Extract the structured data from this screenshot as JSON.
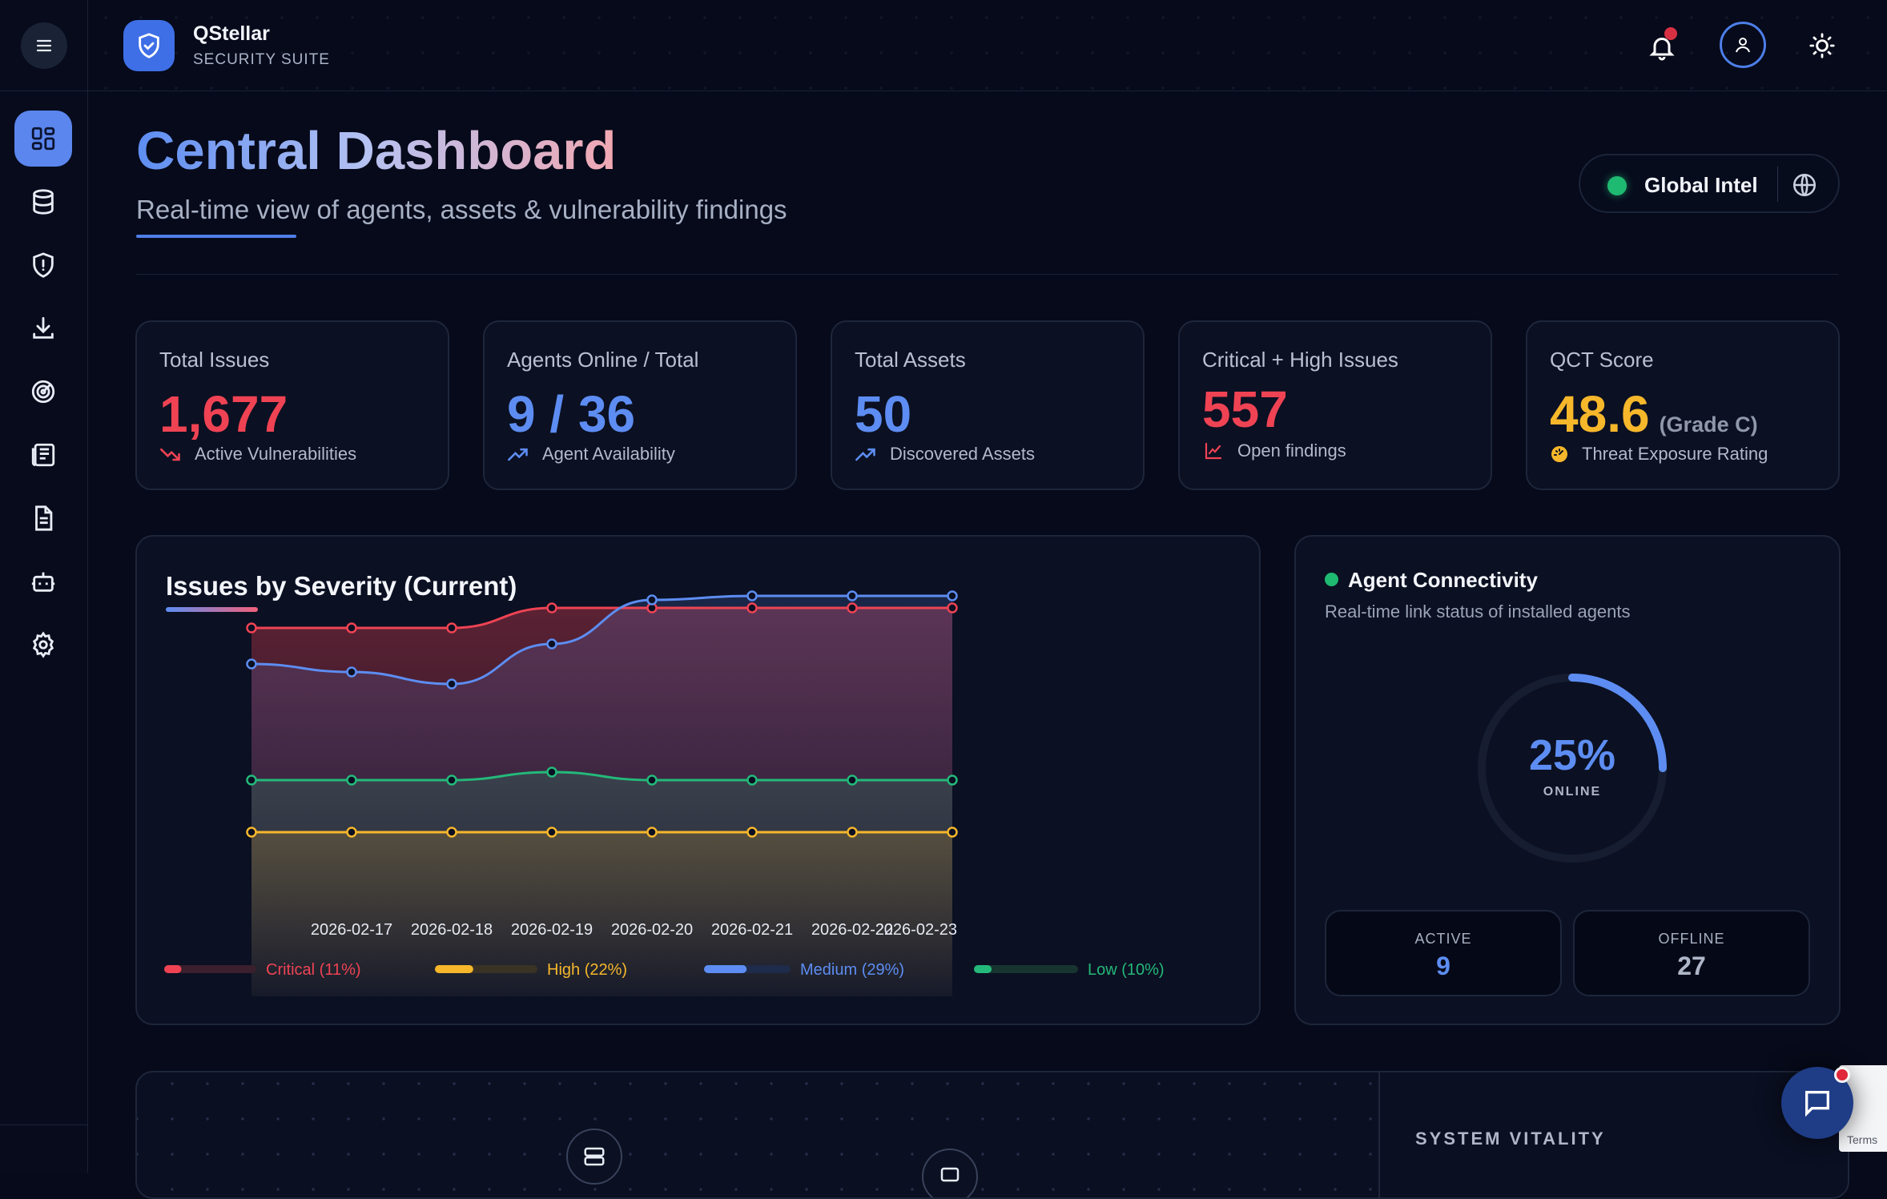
{
  "brand": {
    "name": "QStellar",
    "subtitle": "SECURITY SUITE"
  },
  "sidebar": {
    "items": [
      {
        "icon": "dashboard-icon",
        "active": true
      },
      {
        "icon": "database-icon",
        "active": false
      },
      {
        "icon": "shield-alert-icon",
        "active": false
      },
      {
        "icon": "download-icon",
        "active": false
      },
      {
        "icon": "radar-icon",
        "active": false
      },
      {
        "icon": "newspaper-icon",
        "active": false
      },
      {
        "icon": "document-icon",
        "active": false
      },
      {
        "icon": "robot-icon",
        "active": false
      },
      {
        "icon": "gear-icon",
        "active": false
      }
    ]
  },
  "header": {
    "title": "Central Dashboard",
    "subtitle": "Real-time view of agents, assets & vulnerability findings",
    "global_intel": "Global Intel"
  },
  "stats": [
    {
      "label": "Total Issues",
      "value": "1,677",
      "foot": "Active Vulnerabilities",
      "color": "#ef4354",
      "icon": "trending-down-icon"
    },
    {
      "label": "Agents Online / Total",
      "value": "9 / 36",
      "foot": "Agent Availability",
      "color": "#5d8df2",
      "icon": "trending-up-icon"
    },
    {
      "label": "Total Assets",
      "value": "50",
      "foot": "Discovered Assets",
      "color": "#5d8df2",
      "icon": "trending-up-icon"
    },
    {
      "label": "Critical + High Issues",
      "value": "557",
      "foot": "Open findings",
      "color": "#ef4354",
      "icon": "line-chart-icon"
    },
    {
      "label": "QCT Score",
      "value": "48.6",
      "grade": "(Grade C)",
      "foot": "Threat Exposure Rating",
      "color": "#f6b72b",
      "icon": "gauge-icon"
    }
  ],
  "chart_data": {
    "type": "line",
    "title": "Issues by Severity (Current)",
    "x": [
      "",
      "2026-02-17",
      "2026-02-18",
      "2026-02-19",
      "2026-02-20",
      "2026-02-21",
      "2026-02-22",
      "2026-02-23"
    ],
    "series": [
      {
        "name": "Critical",
        "color": "#ef4354",
        "values": [
          92,
          92,
          92,
          97,
          97,
          97,
          97,
          97
        ]
      },
      {
        "name": "Medium",
        "color": "#5d8df2",
        "values": [
          83,
          81,
          78,
          88,
          99,
          100,
          100,
          100
        ]
      },
      {
        "name": "Low",
        "color": "#24b97a",
        "values": [
          54,
          54,
          54,
          56,
          54,
          54,
          54,
          54
        ]
      },
      {
        "name": "High",
        "color": "#f6b72b",
        "values": [
          41,
          41,
          41,
          41,
          41,
          41,
          41,
          41
        ]
      }
    ],
    "legend": [
      {
        "label": "Critical (11%)",
        "pct": 0.11,
        "color": "#ef4354",
        "track": "#3a1f2c"
      },
      {
        "label": "High (22%)",
        "pct": 0.22,
        "color": "#f6b72b",
        "track": "#3a3225"
      },
      {
        "label": "Medium (29%)",
        "pct": 0.29,
        "color": "#5d8df2",
        "track": "#1f2b4a"
      },
      {
        "label": "Low (10%)",
        "pct": 0.1,
        "color": "#24b97a",
        "track": "#173431"
      }
    ],
    "legend_position": "bottom",
    "grid": false
  },
  "agents": {
    "title": "Agent Connectivity",
    "subtitle": "Real-time link status of installed agents",
    "percent": 0.25,
    "percent_label": "25%",
    "online_label": "ONLINE",
    "active_label": "ACTIVE",
    "active_value": "9",
    "offline_label": "OFFLINE",
    "offline_value": "27"
  },
  "bottom": {
    "system_vitality": "SYSTEM VITALITY"
  },
  "widget": {
    "terms": "Terms"
  }
}
